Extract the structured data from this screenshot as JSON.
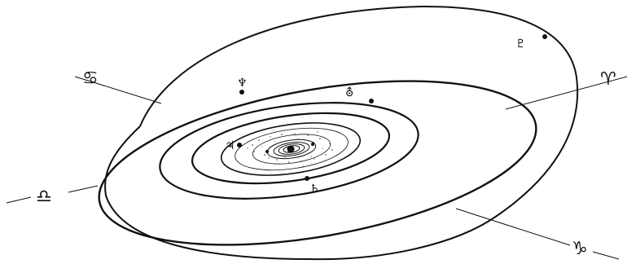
{
  "diagram": {
    "ink_color": "#111111",
    "background_color": "#ffffff",
    "zodiac_signs": [
      {
        "id": "cancer",
        "glyph": "♋",
        "name": "cancer-sign-icon"
      },
      {
        "id": "capricorn",
        "glyph": "♑",
        "name": "capricorn-sign-icon"
      },
      {
        "id": "libra",
        "glyph": "♎",
        "name": "libra-sign-icon"
      },
      {
        "id": "aries",
        "glyph": "♈",
        "name": "aries-sign-icon"
      }
    ],
    "planets": [
      {
        "id": "pluto",
        "glyph": "♇",
        "name": "pluto-icon"
      },
      {
        "id": "neptune",
        "glyph": "♆",
        "name": "neptune-icon"
      },
      {
        "id": "uranus",
        "glyph": "⛢",
        "name": "uranus-icon"
      },
      {
        "id": "jupiter",
        "glyph": "♃",
        "name": "jupiter-icon"
      },
      {
        "id": "saturn",
        "glyph": "♄",
        "name": "saturn-icon"
      }
    ]
  }
}
